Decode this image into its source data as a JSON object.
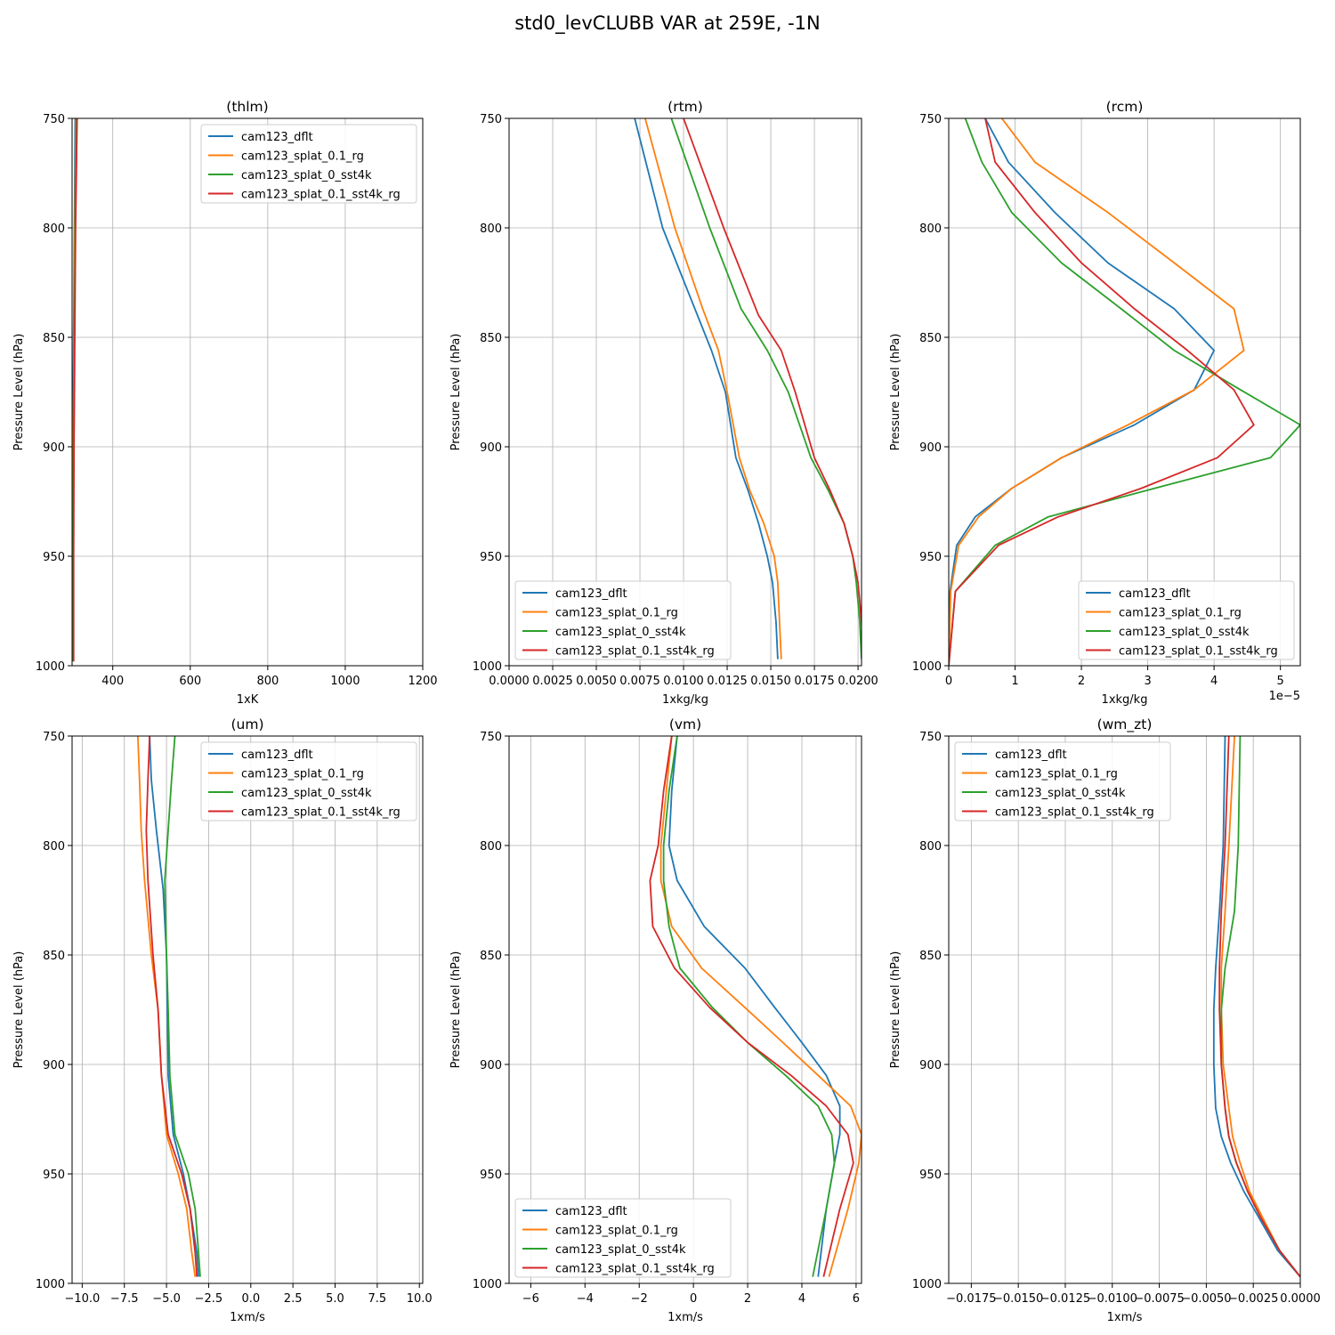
{
  "figure": {
    "suptitle": "std0_levCLUBB VAR at 259E, -1N"
  },
  "colors": {
    "cam123_dflt": "#1f77b4",
    "cam123_splat_0.1_rg": "#ff7f0e",
    "cam123_splat_0_sst4k": "#2ca02c",
    "cam123_splat_0.1_sst4k_rg": "#d62728"
  },
  "chart_data": [
    {
      "type": "line",
      "title": "(thlm)",
      "xlabel": "1xK",
      "ylabel": "Pressure Level (hPa)",
      "xlim": [
        295,
        1200
      ],
      "ylim": [
        1000,
        750
      ],
      "xticks": [
        "400",
        "600",
        "800",
        "1000",
        "1200"
      ],
      "xtick_values": [
        400,
        600,
        800,
        1000,
        1200
      ],
      "yticks": [
        "750",
        "800",
        "850",
        "900",
        "950",
        "1000"
      ],
      "ytick_values": [
        750,
        800,
        850,
        900,
        950,
        1000
      ],
      "grid": true,
      "legend_position": "upper-right",
      "series": [
        {
          "name": "cam123_dflt",
          "x": [
            303,
            301,
            299,
            297,
            296,
            296
          ],
          "y": [
            750,
            800,
            850,
            900,
            950,
            998
          ]
        },
        {
          "name": "cam123_splat_0.1_rg",
          "x": [
            305,
            302,
            300,
            298,
            297,
            297
          ],
          "y": [
            750,
            800,
            850,
            900,
            950,
            998
          ]
        },
        {
          "name": "cam123_splat_0_sst4k",
          "x": [
            306,
            303,
            301,
            299,
            298,
            298
          ],
          "y": [
            750,
            800,
            850,
            900,
            950,
            998
          ]
        },
        {
          "name": "cam123_splat_0.1_sst4k_rg",
          "x": [
            308,
            304,
            302,
            300,
            299,
            299
          ],
          "y": [
            750,
            800,
            850,
            900,
            950,
            998
          ]
        }
      ]
    },
    {
      "type": "line",
      "title": "(rtm)",
      "xlabel": "1xkg/kg",
      "ylabel": "Pressure Level (hPa)",
      "xlim": [
        0,
        0.0202
      ],
      "ylim": [
        1000,
        750
      ],
      "xticks": [
        "0.0000",
        "0.0025",
        "0.0050",
        "0.0075",
        "0.0100",
        "0.0125",
        "0.0150",
        "0.0175",
        "0.0200"
      ],
      "xtick_values": [
        0,
        0.0025,
        0.005,
        0.0075,
        0.01,
        0.0125,
        0.015,
        0.0175,
        0.02
      ],
      "yticks": [
        "750",
        "800",
        "850",
        "900",
        "950",
        "1000"
      ],
      "ytick_values": [
        750,
        800,
        850,
        900,
        950,
        1000
      ],
      "grid": true,
      "legend_position": "lower-left",
      "series": [
        {
          "name": "cam123_dflt",
          "x": [
            0.0072,
            0.0088,
            0.0103,
            0.0116,
            0.0124,
            0.013,
            0.0137,
            0.0143,
            0.0148,
            0.0151,
            0.0153,
            0.0154
          ],
          "y": [
            750,
            800,
            830,
            856,
            875,
            905,
            920,
            935,
            950,
            962,
            980,
            997
          ]
        },
        {
          "name": "cam123_splat_0.1_rg",
          "x": [
            0.0078,
            0.0095,
            0.0111,
            0.012,
            0.0125,
            0.0132,
            0.0138,
            0.0146,
            0.0152,
            0.0154,
            0.0155,
            0.0156
          ],
          "y": [
            750,
            800,
            837,
            856,
            875,
            905,
            920,
            935,
            950,
            962,
            980,
            997
          ]
        },
        {
          "name": "cam123_splat_0_sst4k",
          "x": [
            0.0093,
            0.0115,
            0.0133,
            0.0148,
            0.016,
            0.0173,
            0.0183,
            0.0192,
            0.0197,
            0.0199,
            0.0201,
            0.0202
          ],
          "y": [
            750,
            800,
            837,
            856,
            875,
            905,
            920,
            935,
            950,
            962,
            980,
            997
          ]
        },
        {
          "name": "cam123_splat_0.1_sst4k_rg",
          "x": [
            0.01,
            0.0123,
            0.0143,
            0.0156,
            0.0164,
            0.0175,
            0.0184,
            0.0192,
            0.0197,
            0.02,
            0.0202,
            0.0203
          ],
          "y": [
            750,
            800,
            840,
            856,
            875,
            905,
            920,
            935,
            950,
            962,
            980,
            997
          ]
        }
      ]
    },
    {
      "type": "line",
      "title": "(rcm)",
      "xlabel": "1xkg/kg",
      "ylabel": "Pressure Level (hPa)",
      "offset_text": "1e−5",
      "xlim": [
        0,
        5.3
      ],
      "ylim": [
        1000,
        750
      ],
      "xticks": [
        "0",
        "1",
        "2",
        "3",
        "4",
        "5"
      ],
      "xtick_values": [
        0,
        1,
        2,
        3,
        4,
        5
      ],
      "yticks": [
        "750",
        "800",
        "850",
        "900",
        "950",
        "1000"
      ],
      "ytick_values": [
        750,
        800,
        850,
        900,
        950,
        1000
      ],
      "grid": true,
      "legend_position": "lower-right",
      "series": [
        {
          "name": "cam123_dflt",
          "x": [
            0.55,
            0.9,
            1.6,
            2.4,
            3.4,
            4.0,
            3.7,
            2.8,
            1.7,
            0.95,
            0.4,
            0.12,
            0.02,
            0.0
          ],
          "y": [
            750,
            770,
            793,
            816,
            837,
            856,
            874,
            890,
            905,
            919,
            932,
            945,
            966,
            1000
          ]
        },
        {
          "name": "cam123_splat_0.1_rg",
          "x": [
            0.8,
            1.3,
            2.4,
            3.4,
            4.3,
            4.45,
            3.7,
            2.7,
            1.7,
            0.95,
            0.45,
            0.15,
            0.03,
            0.0
          ],
          "y": [
            750,
            770,
            793,
            816,
            837,
            856,
            874,
            890,
            905,
            919,
            932,
            945,
            966,
            1000
          ]
        },
        {
          "name": "cam123_splat_0_sst4k",
          "x": [
            0.25,
            0.5,
            0.95,
            1.7,
            2.6,
            3.4,
            4.4,
            5.3,
            4.85,
            3.1,
            1.5,
            0.7,
            0.1,
            0.0
          ],
          "y": [
            750,
            770,
            793,
            816,
            837,
            856,
            874,
            890,
            905,
            919,
            932,
            945,
            966,
            1000
          ]
        },
        {
          "name": "cam123_splat_0.1_sst4k_rg",
          "x": [
            0.55,
            0.7,
            1.3,
            2.0,
            2.8,
            3.6,
            4.3,
            4.6,
            4.05,
            2.9,
            1.65,
            0.75,
            0.1,
            0.0
          ],
          "y": [
            750,
            770,
            793,
            816,
            837,
            856,
            874,
            890,
            905,
            919,
            932,
            945,
            966,
            1000
          ]
        }
      ]
    },
    {
      "type": "line",
      "title": "(um)",
      "xlabel": "1xm/s",
      "ylabel": "Pressure Level (hPa)",
      "xlim": [
        -10.6,
        10.2
      ],
      "ylim": [
        1000,
        750
      ],
      "xticks": [
        "−10.0",
        "−7.5",
        "−5.0",
        "−2.5",
        "0.0",
        "2.5",
        "5.0",
        "7.5",
        "10.0"
      ],
      "xtick_values": [
        -10,
        -7.5,
        -5,
        -2.5,
        0,
        2.5,
        5,
        7.5,
        10
      ],
      "yticks": [
        "750",
        "800",
        "850",
        "900",
        "950",
        "1000"
      ],
      "ytick_values": [
        750,
        800,
        850,
        900,
        950,
        1000
      ],
      "grid": true,
      "legend_position": "upper-right",
      "series": [
        {
          "name": "cam123_dflt",
          "x": [
            -6.0,
            -5.9,
            -5.6,
            -5.2,
            -5.0,
            -4.95,
            -4.9,
            -4.6,
            -4.0,
            -3.6,
            -3.2,
            -3.1
          ],
          "y": [
            750,
            770,
            793,
            820,
            850,
            875,
            905,
            932,
            950,
            966,
            986,
            997
          ]
        },
        {
          "name": "cam123_splat_0.1_rg",
          "x": [
            -6.7,
            -6.6,
            -6.5,
            -6.3,
            -5.9,
            -5.5,
            -5.3,
            -5.0,
            -4.3,
            -3.8,
            -3.5,
            -3.3
          ],
          "y": [
            750,
            770,
            793,
            816,
            850,
            875,
            905,
            932,
            950,
            966,
            986,
            997
          ]
        },
        {
          "name": "cam123_splat_0_sst4k",
          "x": [
            -4.5,
            -4.7,
            -4.9,
            -5.1,
            -5.0,
            -4.9,
            -4.8,
            -4.5,
            -3.7,
            -3.3,
            -3.1,
            -3.0
          ],
          "y": [
            750,
            770,
            793,
            816,
            850,
            875,
            905,
            932,
            950,
            966,
            986,
            997
          ]
        },
        {
          "name": "cam123_splat_0.1_sst4k_rg",
          "x": [
            -6.0,
            -6.1,
            -6.2,
            -6.1,
            -5.8,
            -5.5,
            -5.3,
            -4.9,
            -4.1,
            -3.6,
            -3.3,
            -3.2
          ],
          "y": [
            750,
            770,
            793,
            816,
            850,
            875,
            905,
            932,
            950,
            966,
            986,
            997
          ]
        }
      ]
    },
    {
      "type": "line",
      "title": "(vm)",
      "xlabel": "1xm/s",
      "ylabel": "Pressure Level (hPa)",
      "xlim": [
        -6.8,
        6.2
      ],
      "ylim": [
        1000,
        750
      ],
      "xticks": [
        "−6",
        "−4",
        "−2",
        "0",
        "2",
        "4",
        "6"
      ],
      "xtick_values": [
        -6,
        -4,
        -2,
        0,
        2,
        4,
        6
      ],
      "yticks": [
        "750",
        "800",
        "850",
        "900",
        "950",
        "1000"
      ],
      "ytick_values": [
        750,
        800,
        850,
        900,
        950,
        1000
      ],
      "grid": true,
      "legend_position": "lower-left",
      "series": [
        {
          "name": "cam123_dflt",
          "x": [
            -0.6,
            -0.8,
            -0.9,
            -0.6,
            0.4,
            1.9,
            3.0,
            4.0,
            4.9,
            5.4,
            5.4,
            5.2,
            4.9,
            4.6
          ],
          "y": [
            750,
            775,
            800,
            816,
            837,
            856,
            874,
            890,
            905,
            919,
            932,
            945,
            966,
            997
          ]
        },
        {
          "name": "cam123_splat_0.1_rg",
          "x": [
            -0.8,
            -1.0,
            -1.2,
            -1.2,
            -0.8,
            0.3,
            1.9,
            3.3,
            4.6,
            5.8,
            6.2,
            6.1,
            5.7,
            5.0
          ],
          "y": [
            750,
            775,
            800,
            816,
            837,
            856,
            874,
            890,
            905,
            919,
            932,
            945,
            966,
            997
          ]
        },
        {
          "name": "cam123_splat_0_sst4k",
          "x": [
            -0.6,
            -0.9,
            -1.1,
            -1.1,
            -0.9,
            -0.5,
            0.7,
            2.0,
            3.4,
            4.6,
            5.1,
            5.2,
            4.9,
            4.4
          ],
          "y": [
            750,
            775,
            800,
            816,
            837,
            856,
            874,
            890,
            905,
            919,
            932,
            945,
            966,
            997
          ]
        },
        {
          "name": "cam123_splat_0.1_sst4k_rg",
          "x": [
            -0.8,
            -1.1,
            -1.3,
            -1.6,
            -1.5,
            -0.7,
            0.6,
            2.0,
            3.6,
            4.9,
            5.7,
            5.9,
            5.4,
            4.8
          ],
          "y": [
            750,
            775,
            800,
            816,
            837,
            856,
            874,
            890,
            905,
            919,
            932,
            945,
            966,
            997
          ]
        }
      ]
    },
    {
      "type": "line",
      "title": "(wm_zt)",
      "xlabel": "1xm/s",
      "ylabel": "Pressure Level (hPa)",
      "xlim": [
        -0.0187,
        0
      ],
      "ylim": [
        1000,
        750
      ],
      "xticks": [
        "−0.0175",
        "−0.0150",
        "−0.0125",
        "−0.0100",
        "−0.0075",
        "−0.0050",
        "−0.0025",
        "0.0000"
      ],
      "xtick_values": [
        -0.0175,
        -0.015,
        -0.0125,
        -0.01,
        -0.0075,
        -0.005,
        -0.0025,
        0
      ],
      "yticks": [
        "750",
        "800",
        "850",
        "900",
        "950",
        "1000"
      ],
      "ytick_values": [
        750,
        800,
        850,
        900,
        950,
        1000
      ],
      "grid": true,
      "legend_position": "upper-left",
      "series": [
        {
          "name": "cam123_dflt",
          "x": [
            -0.004,
            -0.0041,
            -0.0043,
            -0.0045,
            -0.0046,
            -0.0046,
            -0.0045,
            -0.0042,
            -0.0037,
            -0.003,
            -0.0022,
            -0.0012,
            0.0
          ],
          "y": [
            750,
            800,
            830,
            856,
            875,
            900,
            920,
            933,
            945,
            958,
            970,
            985,
            997
          ]
        },
        {
          "name": "cam123_splat_0.1_rg",
          "x": [
            -0.0035,
            -0.0038,
            -0.004,
            -0.0042,
            -0.0042,
            -0.0041,
            -0.0038,
            -0.0036,
            -0.0032,
            -0.0027,
            -0.002,
            -0.0011,
            0.0
          ],
          "y": [
            750,
            800,
            830,
            856,
            875,
            900,
            920,
            933,
            945,
            958,
            970,
            985,
            997
          ]
        },
        {
          "name": "cam123_splat_0_sst4k",
          "x": [
            -0.0032,
            -0.0033,
            -0.0035,
            -0.004,
            -0.0042,
            -0.0042,
            -0.004,
            -0.0038,
            -0.0034,
            -0.0028,
            -0.0021,
            -0.0011,
            0.0
          ],
          "y": [
            750,
            800,
            830,
            856,
            875,
            900,
            920,
            933,
            945,
            958,
            970,
            985,
            997
          ]
        },
        {
          "name": "cam123_splat_0.1_sst4k_rg",
          "x": [
            -0.0038,
            -0.004,
            -0.0042,
            -0.0043,
            -0.0043,
            -0.0042,
            -0.004,
            -0.0038,
            -0.0034,
            -0.0028,
            -0.0021,
            -0.0011,
            0.0
          ],
          "y": [
            750,
            800,
            830,
            856,
            875,
            900,
            920,
            933,
            945,
            958,
            970,
            985,
            997
          ]
        }
      ]
    }
  ]
}
